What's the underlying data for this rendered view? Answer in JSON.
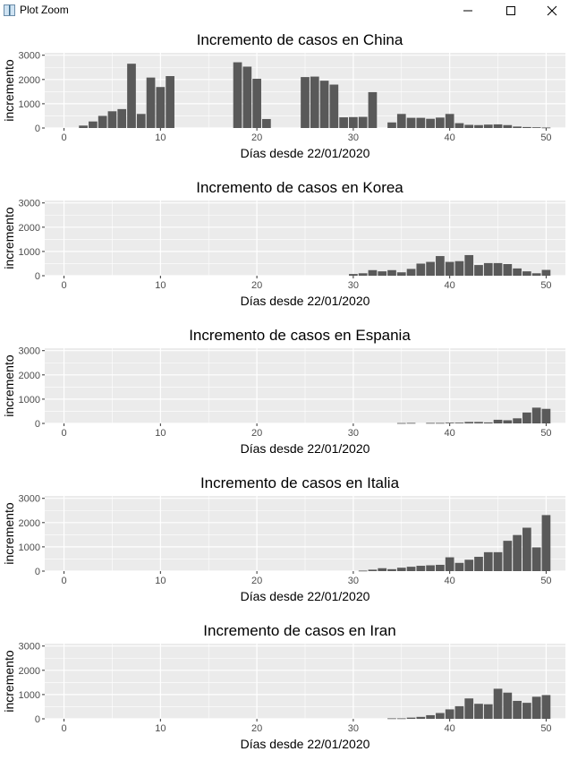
{
  "window": {
    "title": "Plot Zoom",
    "icons": {
      "app": "plot-zoom-app-icon",
      "minimize": "minimize-icon",
      "maximize": "maximize-icon",
      "close": "close-icon"
    }
  },
  "colors": {
    "panel_background": "#ebebeb",
    "grid": "#ffffff",
    "bar": "#595959",
    "text": "#000000",
    "tick_text": "#4d4d4d"
  },
  "chart_data": [
    {
      "type": "bar",
      "title": "Incremento de casos en China",
      "xlabel": "Días desde 22/01/2020",
      "ylabel": "incremento",
      "xlim": [
        -2,
        52
      ],
      "ylim": [
        0,
        3100
      ],
      "xticks": [
        0,
        10,
        20,
        30,
        40,
        50
      ],
      "yticks": [
        0,
        1000,
        2000,
        3000
      ],
      "grid": true,
      "x": [
        2,
        3,
        4,
        5,
        6,
        7,
        8,
        9,
        10,
        11,
        18,
        19,
        20,
        21,
        25,
        26,
        27,
        28,
        29,
        30,
        31,
        32,
        34,
        35,
        36,
        37,
        38,
        39,
        40,
        41,
        42,
        43,
        44,
        45,
        46,
        47,
        48,
        49,
        50
      ],
      "values": [
        100,
        270,
        500,
        690,
        780,
        2650,
        580,
        2080,
        1690,
        2140,
        2710,
        2530,
        2030,
        370,
        2100,
        2120,
        1950,
        1790,
        440,
        450,
        460,
        1480,
        230,
        580,
        420,
        420,
        380,
        430,
        580,
        200,
        130,
        120,
        140,
        150,
        120,
        60,
        40,
        30,
        20
      ]
    },
    {
      "type": "bar",
      "title": "Incremento de casos en Korea",
      "xlabel": "Días desde 22/01/2020",
      "ylabel": "incremento",
      "xlim": [
        -2,
        52
      ],
      "ylim": [
        0,
        3100
      ],
      "xticks": [
        0,
        10,
        20,
        30,
        40,
        50
      ],
      "yticks": [
        0,
        1000,
        2000,
        3000
      ],
      "grid": true,
      "x": [
        30,
        31,
        32,
        33,
        34,
        35,
        36,
        37,
        38,
        39,
        40,
        41,
        42,
        43,
        44,
        45,
        46,
        47,
        48,
        49,
        50
      ],
      "values": [
        70,
        100,
        230,
        180,
        230,
        140,
        280,
        500,
        570,
        810,
        570,
        600,
        850,
        440,
        520,
        520,
        480,
        300,
        180,
        100,
        240
      ]
    },
    {
      "type": "bar",
      "title": "Incremento de casos en Espania",
      "xlabel": "Días desde 22/01/2020",
      "ylabel": "incremento",
      "xlim": [
        -2,
        52
      ],
      "ylim": [
        0,
        3100
      ],
      "xticks": [
        0,
        10,
        20,
        30,
        40,
        50
      ],
      "yticks": [
        0,
        1000,
        2000,
        3000
      ],
      "grid": true,
      "x": [
        35,
        36,
        38,
        39,
        40,
        41,
        42,
        43,
        44,
        45,
        46,
        47,
        48,
        49,
        50
      ],
      "values": [
        15,
        20,
        20,
        20,
        30,
        30,
        60,
        60,
        40,
        150,
        130,
        210,
        450,
        650,
        600
      ]
    },
    {
      "type": "bar",
      "title": "Incremento de casos en Italia",
      "xlabel": "Días desde 22/01/2020",
      "ylabel": "incremento",
      "xlim": [
        -2,
        52
      ],
      "ylim": [
        0,
        3100
      ],
      "xticks": [
        0,
        10,
        20,
        30,
        40,
        50
      ],
      "yticks": [
        0,
        1000,
        2000,
        3000
      ],
      "grid": true,
      "x": [
        31,
        32,
        33,
        34,
        35,
        36,
        37,
        38,
        39,
        40,
        41,
        42,
        43,
        44,
        45,
        46,
        47,
        48,
        49,
        50
      ],
      "values": [
        20,
        60,
        120,
        80,
        140,
        180,
        220,
        240,
        260,
        570,
        340,
        470,
        590,
        780,
        780,
        1250,
        1490,
        1790,
        980,
        2310
      ]
    },
    {
      "type": "bar",
      "title": "Incremento de casos en Iran",
      "xlabel": "Días desde 22/01/2020",
      "ylabel": "incremento",
      "xlim": [
        -2,
        52
      ],
      "ylim": [
        0,
        3100
      ],
      "xticks": [
        0,
        10,
        20,
        30,
        40,
        50
      ],
      "yticks": [
        0,
        1000,
        2000,
        3000
      ],
      "grid": true,
      "x": [
        34,
        35,
        36,
        37,
        38,
        39,
        40,
        41,
        42,
        43,
        44,
        45,
        46,
        47,
        48,
        49,
        50
      ],
      "values": [
        20,
        20,
        50,
        80,
        150,
        240,
        390,
        520,
        840,
        620,
        600,
        1240,
        1080,
        740,
        660,
        910,
        980
      ]
    }
  ]
}
